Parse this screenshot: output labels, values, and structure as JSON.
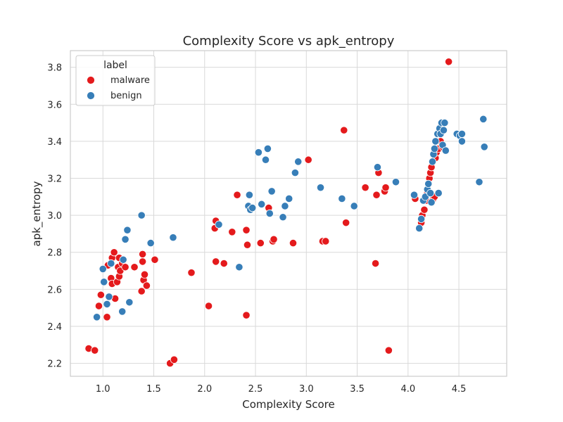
{
  "chart_data": {
    "type": "scatter",
    "title": "Complexity Score vs apk_entropy",
    "xlabel": "Complexity Score",
    "ylabel": "apk_entropy",
    "xlim": [
      0.68,
      4.97
    ],
    "ylim": [
      2.13,
      3.89
    ],
    "xticks": [
      1.0,
      1.5,
      2.0,
      2.5,
      3.0,
      3.5,
      4.0,
      4.5
    ],
    "xtick_labels": [
      "1.0",
      "1.5",
      "2.0",
      "2.5",
      "3.0",
      "3.5",
      "4.0",
      "4.5"
    ],
    "yticks": [
      2.2,
      2.4,
      2.6,
      2.8,
      3.0,
      3.2,
      3.4,
      3.6,
      3.8
    ],
    "ytick_labels": [
      "2.2",
      "2.4",
      "2.6",
      "2.8",
      "3.0",
      "3.2",
      "3.4",
      "3.6",
      "3.8"
    ],
    "grid": true,
    "legend": {
      "title": "label",
      "position": "upper-left",
      "entries": [
        "malware",
        "benign"
      ]
    },
    "colors": {
      "malware": "#e41a1c",
      "benign": "#377eb8"
    },
    "series": [
      {
        "name": "malware",
        "color": "#e41a1c",
        "points": [
          [
            0.86,
            2.28
          ],
          [
            0.92,
            2.27
          ],
          [
            0.96,
            2.51
          ],
          [
            0.98,
            2.57
          ],
          [
            1.04,
            2.45
          ],
          [
            1.05,
            2.73
          ],
          [
            1.08,
            2.66
          ],
          [
            1.09,
            2.63
          ],
          [
            1.09,
            2.77
          ],
          [
            1.11,
            2.8
          ],
          [
            1.12,
            2.55
          ],
          [
            1.14,
            2.64
          ],
          [
            1.15,
            2.72
          ],
          [
            1.16,
            2.77
          ],
          [
            1.16,
            2.67
          ],
          [
            1.17,
            2.7
          ],
          [
            1.19,
            2.74
          ],
          [
            1.22,
            2.72
          ],
          [
            1.31,
            2.72
          ],
          [
            1.38,
            2.59
          ],
          [
            1.39,
            2.79
          ],
          [
            1.39,
            2.75
          ],
          [
            1.4,
            2.65
          ],
          [
            1.41,
            2.68
          ],
          [
            1.43,
            2.62
          ],
          [
            1.51,
            2.76
          ],
          [
            1.66,
            2.2
          ],
          [
            1.7,
            2.22
          ],
          [
            1.87,
            2.69
          ],
          [
            2.04,
            2.51
          ],
          [
            2.1,
            2.93
          ],
          [
            2.11,
            2.97
          ],
          [
            2.11,
            2.75
          ],
          [
            2.19,
            2.74
          ],
          [
            2.27,
            2.91
          ],
          [
            2.32,
            3.11
          ],
          [
            2.41,
            2.46
          ],
          [
            2.41,
            2.92
          ],
          [
            2.42,
            2.84
          ],
          [
            2.55,
            2.85
          ],
          [
            2.63,
            3.04
          ],
          [
            2.67,
            2.86
          ],
          [
            2.68,
            2.87
          ],
          [
            2.87,
            2.85
          ],
          [
            3.02,
            3.3
          ],
          [
            3.16,
            2.86
          ],
          [
            3.19,
            2.86
          ],
          [
            3.37,
            3.46
          ],
          [
            3.39,
            2.96
          ],
          [
            3.58,
            3.15
          ],
          [
            3.68,
            2.74
          ],
          [
            3.69,
            3.11
          ],
          [
            3.71,
            3.23
          ],
          [
            3.77,
            3.13
          ],
          [
            3.78,
            3.15
          ],
          [
            3.81,
            2.27
          ],
          [
            4.07,
            3.09
          ],
          [
            4.13,
            2.96
          ],
          [
            4.14,
            3.0
          ],
          [
            4.16,
            3.03
          ],
          [
            4.18,
            3.08
          ],
          [
            4.19,
            3.12
          ],
          [
            4.2,
            3.17
          ],
          [
            4.21,
            3.2
          ],
          [
            4.22,
            3.23
          ],
          [
            4.23,
            3.26
          ],
          [
            4.25,
            3.09
          ],
          [
            4.26,
            3.1
          ],
          [
            4.27,
            3.31
          ],
          [
            4.28,
            3.34
          ],
          [
            4.3,
            3.36
          ],
          [
            4.32,
            3.4
          ],
          [
            4.34,
            3.37
          ],
          [
            4.4,
            3.83
          ]
        ]
      },
      {
        "name": "benign",
        "color": "#377eb8",
        "points": [
          [
            0.94,
            2.45
          ],
          [
            1.0,
            2.71
          ],
          [
            1.01,
            2.64
          ],
          [
            1.04,
            2.52
          ],
          [
            1.06,
            2.56
          ],
          [
            1.08,
            2.74
          ],
          [
            1.19,
            2.48
          ],
          [
            1.2,
            2.76
          ],
          [
            1.22,
            2.87
          ],
          [
            1.24,
            2.92
          ],
          [
            1.26,
            2.53
          ],
          [
            1.38,
            3.0
          ],
          [
            1.47,
            2.85
          ],
          [
            1.69,
            2.88
          ],
          [
            2.14,
            2.95
          ],
          [
            2.34,
            2.72
          ],
          [
            2.43,
            3.05
          ],
          [
            2.44,
            3.11
          ],
          [
            2.45,
            3.03
          ],
          [
            2.47,
            3.04
          ],
          [
            2.53,
            3.34
          ],
          [
            2.56,
            3.06
          ],
          [
            2.6,
            3.3
          ],
          [
            2.62,
            3.36
          ],
          [
            2.64,
            3.01
          ],
          [
            2.66,
            3.13
          ],
          [
            2.77,
            2.99
          ],
          [
            2.79,
            3.05
          ],
          [
            2.83,
            3.09
          ],
          [
            2.89,
            3.23
          ],
          [
            2.92,
            3.29
          ],
          [
            3.14,
            3.15
          ],
          [
            3.35,
            3.09
          ],
          [
            3.47,
            3.05
          ],
          [
            3.7,
            3.26
          ],
          [
            3.88,
            3.18
          ],
          [
            4.06,
            3.11
          ],
          [
            4.11,
            2.93
          ],
          [
            4.13,
            2.98
          ],
          [
            4.15,
            3.08
          ],
          [
            4.17,
            3.1
          ],
          [
            4.19,
            3.14
          ],
          [
            4.2,
            3.17
          ],
          [
            4.22,
            3.12
          ],
          [
            4.23,
            3.07
          ],
          [
            4.24,
            3.29
          ],
          [
            4.25,
            3.33
          ],
          [
            4.26,
            3.36
          ],
          [
            4.27,
            3.4
          ],
          [
            4.29,
            3.44
          ],
          [
            4.3,
            3.12
          ],
          [
            4.31,
            3.47
          ],
          [
            4.32,
            3.44
          ],
          [
            4.33,
            3.5
          ],
          [
            4.34,
            3.38
          ],
          [
            4.35,
            3.46
          ],
          [
            4.36,
            3.5
          ],
          [
            4.37,
            3.35
          ],
          [
            4.48,
            3.44
          ],
          [
            4.51,
            3.43
          ],
          [
            4.53,
            3.44
          ],
          [
            4.53,
            3.4
          ],
          [
            4.7,
            3.18
          ],
          [
            4.74,
            3.52
          ],
          [
            4.75,
            3.37
          ]
        ]
      }
    ]
  }
}
